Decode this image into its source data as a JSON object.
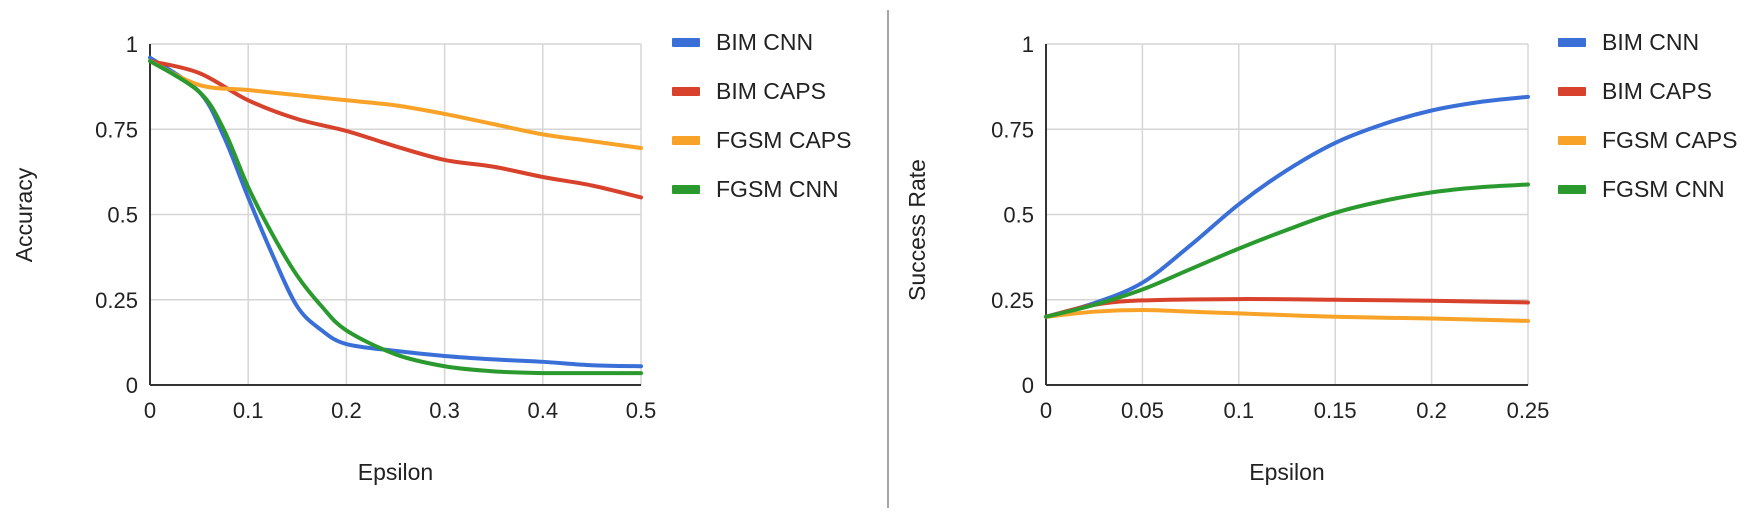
{
  "colors": {
    "BIM CNN": "#3a6fd8",
    "BIM CAPS": "#d8412b",
    "FGSM CAPS": "#f8a227",
    "FGSM CNN": "#2a9a2e"
  },
  "chart_data": [
    {
      "type": "line",
      "title": "",
      "xlabel": "Epsilon",
      "ylabel": "Accuracy",
      "xlim": [
        0,
        0.5
      ],
      "ylim": [
        0,
        1
      ],
      "xticks": [
        "0",
        "0.1",
        "0.2",
        "0.3",
        "0.4",
        "0.5"
      ],
      "yticks": [
        "0",
        "0.25",
        "0.5",
        "0.75",
        "1"
      ],
      "grid": true,
      "legend_position": "right",
      "series": [
        {
          "name": "BIM CNN",
          "x": [
            0,
            0.05,
            0.075,
            0.1,
            0.125,
            0.15,
            0.175,
            0.2,
            0.25,
            0.3,
            0.35,
            0.4,
            0.45,
            0.5
          ],
          "y": [
            0.96,
            0.86,
            0.73,
            0.55,
            0.38,
            0.23,
            0.16,
            0.12,
            0.1,
            0.085,
            0.075,
            0.068,
            0.058,
            0.055
          ]
        },
        {
          "name": "BIM CAPS",
          "x": [
            0,
            0.05,
            0.1,
            0.15,
            0.2,
            0.25,
            0.3,
            0.35,
            0.4,
            0.45,
            0.5
          ],
          "y": [
            0.95,
            0.915,
            0.835,
            0.78,
            0.745,
            0.7,
            0.66,
            0.64,
            0.61,
            0.585,
            0.55
          ]
        },
        {
          "name": "FGSM CAPS",
          "x": [
            0,
            0.05,
            0.1,
            0.15,
            0.2,
            0.25,
            0.3,
            0.35,
            0.4,
            0.45,
            0.5
          ],
          "y": [
            0.95,
            0.88,
            0.865,
            0.85,
            0.835,
            0.82,
            0.795,
            0.765,
            0.735,
            0.715,
            0.695
          ]
        },
        {
          "name": "FGSM CNN",
          "x": [
            0,
            0.05,
            0.075,
            0.1,
            0.125,
            0.15,
            0.175,
            0.2,
            0.25,
            0.3,
            0.35,
            0.4,
            0.45,
            0.5
          ],
          "y": [
            0.95,
            0.86,
            0.75,
            0.58,
            0.44,
            0.32,
            0.23,
            0.16,
            0.09,
            0.055,
            0.04,
            0.035,
            0.035,
            0.035
          ]
        }
      ]
    },
    {
      "type": "line",
      "title": "",
      "xlabel": "Epsilon",
      "ylabel": "Success Rate",
      "xlim": [
        0,
        0.25
      ],
      "ylim": [
        0,
        1
      ],
      "xticks": [
        "0",
        "0.05",
        "0.1",
        "0.15",
        "0.2",
        "0.25"
      ],
      "yticks": [
        "0",
        "0.25",
        "0.5",
        "0.75",
        "1"
      ],
      "grid": true,
      "legend_position": "right",
      "series": [
        {
          "name": "BIM CNN",
          "x": [
            0,
            0.025,
            0.05,
            0.075,
            0.1,
            0.125,
            0.15,
            0.175,
            0.2,
            0.225,
            0.25
          ],
          "y": [
            0.2,
            0.24,
            0.3,
            0.41,
            0.53,
            0.63,
            0.71,
            0.765,
            0.805,
            0.83,
            0.845
          ]
        },
        {
          "name": "BIM CAPS",
          "x": [
            0,
            0.025,
            0.05,
            0.1,
            0.15,
            0.2,
            0.25
          ],
          "y": [
            0.2,
            0.235,
            0.248,
            0.252,
            0.25,
            0.247,
            0.242
          ]
        },
        {
          "name": "FGSM CAPS",
          "x": [
            0,
            0.025,
            0.05,
            0.075,
            0.1,
            0.15,
            0.2,
            0.25
          ],
          "y": [
            0.2,
            0.215,
            0.22,
            0.215,
            0.21,
            0.2,
            0.195,
            0.188
          ]
        },
        {
          "name": "FGSM CNN",
          "x": [
            0,
            0.025,
            0.05,
            0.075,
            0.1,
            0.125,
            0.15,
            0.175,
            0.2,
            0.225,
            0.25
          ],
          "y": [
            0.2,
            0.235,
            0.28,
            0.34,
            0.4,
            0.455,
            0.505,
            0.54,
            0.565,
            0.58,
            0.588
          ]
        }
      ]
    }
  ]
}
